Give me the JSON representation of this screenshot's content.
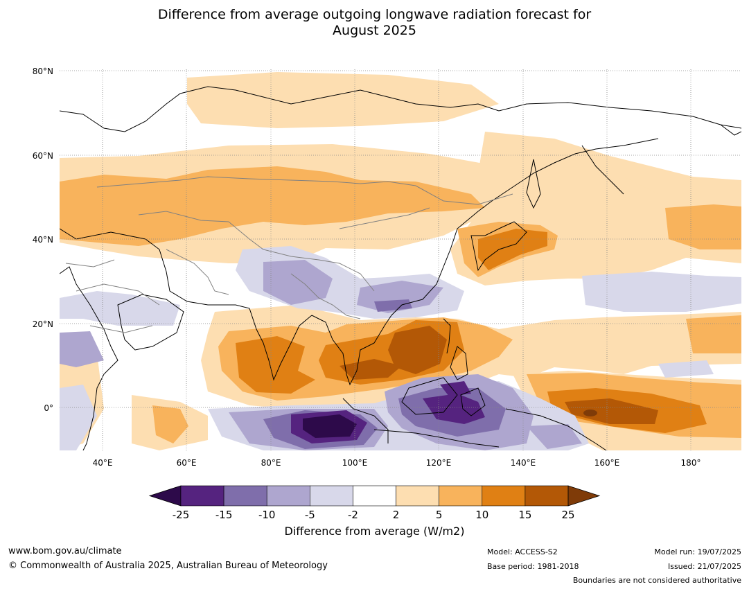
{
  "title_line1": "Difference from average outgoing longwave radiation forecast for",
  "title_line2": "August 2025",
  "map": {
    "lat_labels": [
      "80°N",
      "60°N",
      "40°N",
      "20°N",
      "0°"
    ],
    "lon_labels": [
      "40°E",
      "60°E",
      "80°E",
      "100°E",
      "120°E",
      "140°E",
      "160°E",
      "180°"
    ],
    "extent": {
      "lon_min": 30,
      "lon_max": 192,
      "lat_min": -10,
      "lat_max": 81
    }
  },
  "colorbar": {
    "label": "Difference from average (W/m2)",
    "ticks": [
      "-25",
      "-15",
      "-10",
      "-5",
      "-2",
      "2",
      "5",
      "10",
      "15",
      "25"
    ],
    "colors": [
      "#2d0a4a",
      "#55237f",
      "#7f6eab",
      "#aea6cf",
      "#d8d8ea",
      "#ffffff",
      "#fddeb1",
      "#f8b35c",
      "#e08014",
      "#b35806",
      "#7f3b08"
    ]
  },
  "footer": {
    "url": "www.bom.gov.au/climate",
    "copyright": "© Commonwealth of Australia 2025, Australian Bureau of Meteorology",
    "model": "Model: ACCESS-S2",
    "base_period": "Base period: 1981-2018",
    "model_run": "Model run: 19/07/2025",
    "issued": "Issued: 21/07/2025",
    "disclaimer": "Boundaries are not considered authoritative"
  }
}
